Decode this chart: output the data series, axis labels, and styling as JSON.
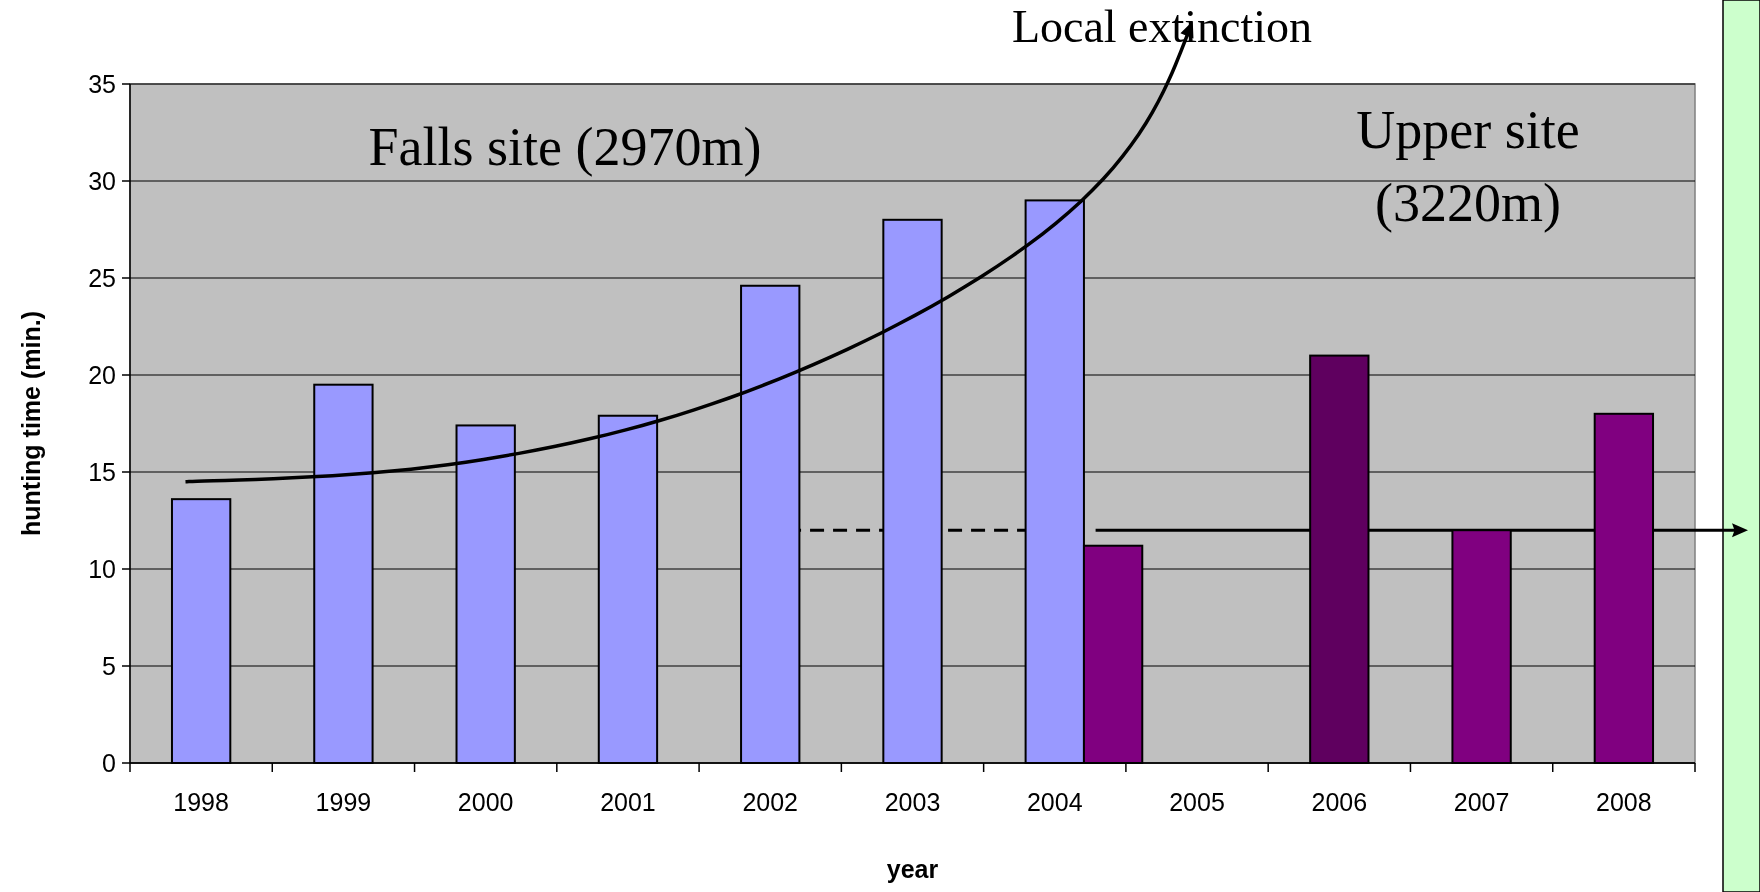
{
  "chart_data": {
    "type": "bar",
    "xlabel": "year",
    "ylabel": "hunting time (min.)",
    "categories": [
      "1998",
      "1999",
      "2000",
      "2001",
      "2002",
      "2003",
      "2004",
      "2005",
      "2006",
      "2007",
      "2008"
    ],
    "series": [
      {
        "color": "#9999ff",
        "values": [
          13.6,
          19.5,
          17.4,
          17.9,
          24.6,
          28.0,
          29.0,
          null,
          null,
          null,
          null
        ]
      },
      {
        "color": "#800080",
        "colors": [
          null,
          null,
          null,
          null,
          null,
          null,
          null,
          null,
          "#5f005f",
          null,
          null
        ],
        "values": [
          null,
          null,
          null,
          null,
          null,
          null,
          11.2,
          null,
          21.0,
          12.0,
          18.0
        ]
      }
    ],
    "ylim": [
      0,
      35
    ],
    "yticks": [
      0,
      5,
      10,
      15,
      20,
      25,
      30,
      35
    ],
    "grid": "y",
    "ref_lines": [
      {
        "axis": "y",
        "value": 12,
        "line_style": "dashed"
      }
    ],
    "annotations": [
      "Falls site (2970m)",
      "Upper site\n(3220m)",
      "Local extinction"
    ]
  }
}
